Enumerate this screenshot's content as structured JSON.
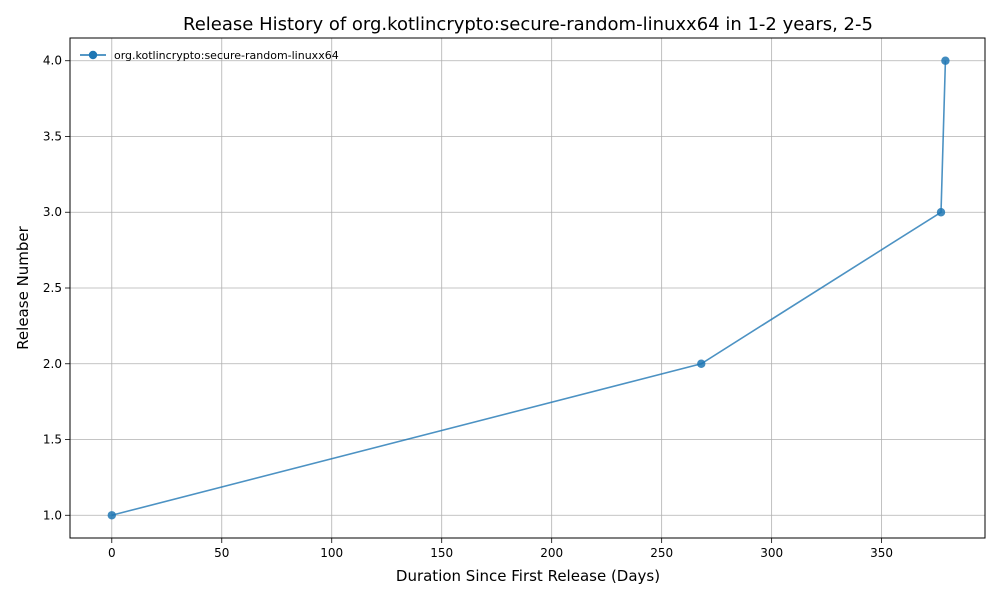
{
  "chart_data": {
    "type": "line",
    "title": "Release History of org.kotlincrypto:secure-random-linuxx64 in 1-2 years, 2-5",
    "xlabel": "Duration Since First Release (Days)",
    "ylabel": "Release Number",
    "xlim": [
      -19,
      397
    ],
    "ylim": [
      0.85,
      4.15
    ],
    "x_ticks": [
      0,
      50,
      100,
      150,
      200,
      250,
      300,
      350
    ],
    "y_ticks": [
      1.0,
      1.5,
      2.0,
      2.5,
      3.0,
      3.5,
      4.0
    ],
    "x_tick_labels": [
      "0",
      "50",
      "100",
      "150",
      "200",
      "250",
      "300",
      "350"
    ],
    "y_tick_labels": [
      "1.0",
      "1.5",
      "2.0",
      "2.5",
      "3.0",
      "3.5",
      "4.0"
    ],
    "grid": true,
    "legend_position": "top-left",
    "series": [
      {
        "name": "org.kotlincrypto:secure-random-linuxx64",
        "color": "#1f77b4",
        "marker": "circle",
        "x": [
          0,
          268,
          377,
          379
        ],
        "y": [
          1,
          2,
          3,
          4
        ]
      }
    ]
  }
}
